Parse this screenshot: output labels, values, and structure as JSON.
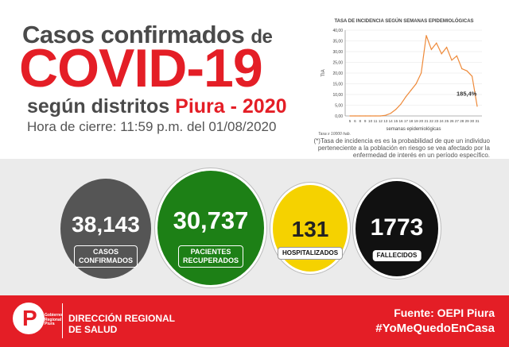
{
  "header": {
    "line1_a": "Casos confirmados",
    "line1_b": "de",
    "covid": "COVID-19",
    "line3_a": "según distritos",
    "line3_b": "Piura - 2020",
    "cierre": "Hora de cierre: 11:59 p.m. del 01/08/2020"
  },
  "chart_data": {
    "type": "line",
    "title": "TASA DE INCIDENCIA SEGÚN SEMANAS EPIDEMIOLÓGICAS",
    "xlabel": "semanas epidemiológicas",
    "ylabel": "TIA",
    "note": "Tasa x 10000 hab.",
    "annotation": "185,4%",
    "ylim": [
      0,
      40
    ],
    "yticks": [
      "0,00",
      "5,00",
      "10,00",
      "15,00",
      "20,00",
      "25,00",
      "30,00",
      "35,00",
      "40,00"
    ],
    "x": [
      "5",
      "6",
      "8",
      "9",
      "10",
      "11",
      "12",
      "13",
      "14",
      "15",
      "16",
      "17",
      "18",
      "19",
      "20",
      "21",
      "22",
      "23",
      "24",
      "25",
      "26",
      "27",
      "28",
      "29",
      "30",
      "31"
    ],
    "series": [
      {
        "values": [
          0,
          0,
          0,
          0,
          0,
          0,
          0,
          0.3,
          1.2,
          3,
          5.5,
          9,
          12,
          15,
          20,
          37.5,
          31,
          34,
          29,
          32,
          26,
          28,
          22,
          21,
          18.5,
          4.5
        ],
        "color": "#ee8a3a"
      }
    ]
  },
  "footnote": "(*)Tasa de incidencia es es la probabilidad de que un individuo perteneciente a la población en riesgo se vea afectado por la enfermedad de interés en un período específico.",
  "stats": {
    "confirmados": {
      "value": "38,143",
      "label_1": "CASOS",
      "label_2": "CONFIRMADOS",
      "color": "#555555"
    },
    "recuperados": {
      "value": "30,737",
      "label_1": "PACIENTES",
      "label_2": "RECUPERADOS",
      "color": "#1d8016"
    },
    "hospitalizados": {
      "value": "131",
      "label": "HOSPITALIZADOS",
      "color": "#f5d200"
    },
    "fallecidos": {
      "value": "1773",
      "label": "FALLECIDOS",
      "color": "#111111"
    }
  },
  "footer": {
    "logo_letter": "P",
    "logo_text_1": "Gobierno",
    "logo_text_2": "Regional",
    "logo_text_3": "Piura",
    "direccion_1": "DIRECCIÓN REGIONAL",
    "direccion_2": "DE SALUD",
    "fuente": "Fuente: OEPI Piura",
    "hashtag": "#YoMeQuedoEnCasa",
    "brand_color": "#e41e26"
  }
}
